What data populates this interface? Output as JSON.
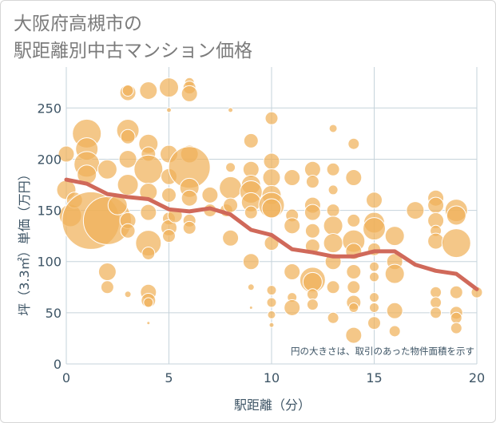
{
  "title": {
    "line1": "大阪府高槻市の",
    "line2": "駅距離別中古マンション価格"
  },
  "annotation": "円の大きさは、取引のあった物件面積を示す",
  "colors": {
    "bubble": "#f0b25a",
    "bubble_stroke": "#ffffff",
    "trend": "#d0695a",
    "grid": "#c6d3db",
    "axis_text": "#3e5566",
    "plot_bg": "#ffffff"
  },
  "chart_data": {
    "type": "scatter",
    "title": "大阪府高槻市の 駅距離別中古マンション価格",
    "xlabel": "駅距離（分）",
    "ylabel": "坪（3.3㎡）単価（万円）",
    "xlim": [
      0,
      20
    ],
    "ylim": [
      0,
      290
    ],
    "xticks": [
      0,
      5,
      10,
      15,
      20
    ],
    "yticks": [
      0,
      50,
      100,
      150,
      200,
      250
    ],
    "grid": true,
    "size_encodes": "物件面積",
    "trend_line": {
      "x": [
        0,
        1,
        2,
        3,
        4,
        5,
        6,
        7,
        8,
        9,
        10,
        11,
        12,
        13,
        14,
        15,
        16,
        17,
        18,
        19,
        20
      ],
      "y": [
        180,
        176,
        166,
        163,
        161,
        151,
        149,
        152,
        146,
        131,
        126,
        112,
        109,
        105,
        105,
        110,
        110,
        97,
        91,
        88,
        73
      ]
    },
    "points": [
      {
        "x": 0,
        "y": 205,
        "s": 10
      },
      {
        "x": 0,
        "y": 170,
        "s": 12
      },
      {
        "x": 0.2,
        "y": 145,
        "s": 14
      },
      {
        "x": 0.4,
        "y": 160,
        "s": 10
      },
      {
        "x": 1,
        "y": 225,
        "s": 18
      },
      {
        "x": 1,
        "y": 210,
        "s": 14
      },
      {
        "x": 1,
        "y": 195,
        "s": 16
      },
      {
        "x": 1,
        "y": 185,
        "s": 12
      },
      {
        "x": 1.2,
        "y": 140,
        "s": 36
      },
      {
        "x": 2,
        "y": 140,
        "s": 30
      },
      {
        "x": 2,
        "y": 190,
        "s": 12
      },
      {
        "x": 2,
        "y": 90,
        "s": 11
      },
      {
        "x": 2,
        "y": 75,
        "s": 8
      },
      {
        "x": 2.5,
        "y": 155,
        "s": 12
      },
      {
        "x": 3,
        "y": 265,
        "s": 10
      },
      {
        "x": 3,
        "y": 267,
        "s": 7
      },
      {
        "x": 3,
        "y": 228,
        "s": 14
      },
      {
        "x": 3,
        "y": 222,
        "s": 9
      },
      {
        "x": 3,
        "y": 200,
        "s": 11
      },
      {
        "x": 3,
        "y": 175,
        "s": 13
      },
      {
        "x": 3,
        "y": 140,
        "s": 10
      },
      {
        "x": 3,
        "y": 130,
        "s": 9
      },
      {
        "x": 3,
        "y": 68,
        "s": 4
      },
      {
        "x": 4,
        "y": 267,
        "s": 11
      },
      {
        "x": 4,
        "y": 215,
        "s": 12
      },
      {
        "x": 4,
        "y": 205,
        "s": 9
      },
      {
        "x": 4,
        "y": 190,
        "s": 18
      },
      {
        "x": 4,
        "y": 168,
        "s": 11
      },
      {
        "x": 4,
        "y": 148,
        "s": 10
      },
      {
        "x": 4,
        "y": 118,
        "s": 16
      },
      {
        "x": 4,
        "y": 108,
        "s": 8
      },
      {
        "x": 4,
        "y": 70,
        "s": 10
      },
      {
        "x": 4,
        "y": 62,
        "s": 9
      },
      {
        "x": 4,
        "y": 60,
        "s": 6
      },
      {
        "x": 4,
        "y": 40,
        "s": 2
      },
      {
        "x": 5,
        "y": 270,
        "s": 12
      },
      {
        "x": 5,
        "y": 248,
        "s": 3
      },
      {
        "x": 5,
        "y": 205,
        "s": 11
      },
      {
        "x": 5,
        "y": 183,
        "s": 10
      },
      {
        "x": 5,
        "y": 165,
        "s": 9
      },
      {
        "x": 5,
        "y": 142,
        "s": 8
      },
      {
        "x": 5,
        "y": 133,
        "s": 10
      },
      {
        "x": 5,
        "y": 125,
        "s": 8
      },
      {
        "x": 5.3,
        "y": 145,
        "s": 9
      },
      {
        "x": 6,
        "y": 275,
        "s": 6
      },
      {
        "x": 6,
        "y": 270,
        "s": 8
      },
      {
        "x": 6,
        "y": 264,
        "s": 10
      },
      {
        "x": 6,
        "y": 205,
        "s": 11
      },
      {
        "x": 6,
        "y": 192,
        "s": 26
      },
      {
        "x": 6,
        "y": 172,
        "s": 12
      },
      {
        "x": 6,
        "y": 162,
        "s": 10
      },
      {
        "x": 6,
        "y": 140,
        "s": 8
      },
      {
        "x": 6,
        "y": 133,
        "s": 8
      },
      {
        "x": 7,
        "y": 165,
        "s": 10
      },
      {
        "x": 7,
        "y": 150,
        "s": 8
      },
      {
        "x": 7.8,
        "y": 150,
        "s": 8
      },
      {
        "x": 8,
        "y": 248,
        "s": 3
      },
      {
        "x": 8,
        "y": 192,
        "s": 6
      },
      {
        "x": 8,
        "y": 172,
        "s": 14
      },
      {
        "x": 8,
        "y": 155,
        "s": 9
      },
      {
        "x": 8,
        "y": 123,
        "s": 10
      },
      {
        "x": 9,
        "y": 218,
        "s": 9
      },
      {
        "x": 9,
        "y": 190,
        "s": 10
      },
      {
        "x": 9,
        "y": 175,
        "s": 12
      },
      {
        "x": 9,
        "y": 168,
        "s": 14
      },
      {
        "x": 9,
        "y": 158,
        "s": 12
      },
      {
        "x": 9,
        "y": 148,
        "s": 8
      },
      {
        "x": 9,
        "y": 100,
        "s": 10
      },
      {
        "x": 9,
        "y": 75,
        "s": 4
      },
      {
        "x": 9,
        "y": 55,
        "s": 2
      },
      {
        "x": 10,
        "y": 240,
        "s": 8
      },
      {
        "x": 10,
        "y": 198,
        "s": 10
      },
      {
        "x": 10,
        "y": 182,
        "s": 11
      },
      {
        "x": 10,
        "y": 165,
        "s": 12
      },
      {
        "x": 10,
        "y": 155,
        "s": 16
      },
      {
        "x": 10,
        "y": 152,
        "s": 12
      },
      {
        "x": 10,
        "y": 118,
        "s": 9
      },
      {
        "x": 10,
        "y": 72,
        "s": 6
      },
      {
        "x": 10,
        "y": 60,
        "s": 6
      },
      {
        "x": 10,
        "y": 48,
        "s": 5
      },
      {
        "x": 10,
        "y": 38,
        "s": 3
      },
      {
        "x": 11,
        "y": 182,
        "s": 10
      },
      {
        "x": 11,
        "y": 145,
        "s": 8
      },
      {
        "x": 11,
        "y": 135,
        "s": 10
      },
      {
        "x": 11,
        "y": 90,
        "s": 10
      },
      {
        "x": 11,
        "y": 65,
        "s": 6
      },
      {
        "x": 11,
        "y": 55,
        "s": 10
      },
      {
        "x": 12,
        "y": 190,
        "s": 10
      },
      {
        "x": 12,
        "y": 178,
        "s": 8
      },
      {
        "x": 12,
        "y": 155,
        "s": 10
      },
      {
        "x": 12,
        "y": 148,
        "s": 10
      },
      {
        "x": 12,
        "y": 130,
        "s": 9
      },
      {
        "x": 12,
        "y": 115,
        "s": 9
      },
      {
        "x": 12,
        "y": 82,
        "s": 16
      },
      {
        "x": 12,
        "y": 80,
        "s": 12
      },
      {
        "x": 12,
        "y": 68,
        "s": 7
      },
      {
        "x": 12,
        "y": 58,
        "s": 7
      },
      {
        "x": 13,
        "y": 230,
        "s": 5
      },
      {
        "x": 13,
        "y": 190,
        "s": 8
      },
      {
        "x": 13,
        "y": 170,
        "s": 6
      },
      {
        "x": 13,
        "y": 150,
        "s": 8
      },
      {
        "x": 13,
        "y": 135,
        "s": 12
      },
      {
        "x": 13,
        "y": 118,
        "s": 12
      },
      {
        "x": 13,
        "y": 100,
        "s": 10
      },
      {
        "x": 13,
        "y": 75,
        "s": 8
      },
      {
        "x": 13,
        "y": 45,
        "s": 7
      },
      {
        "x": 14,
        "y": 215,
        "s": 7
      },
      {
        "x": 14,
        "y": 182,
        "s": 10
      },
      {
        "x": 14,
        "y": 140,
        "s": 8
      },
      {
        "x": 14,
        "y": 120,
        "s": 14
      },
      {
        "x": 14,
        "y": 110,
        "s": 10
      },
      {
        "x": 14,
        "y": 90,
        "s": 9
      },
      {
        "x": 14,
        "y": 75,
        "s": 8
      },
      {
        "x": 14,
        "y": 60,
        "s": 9
      },
      {
        "x": 14,
        "y": 55,
        "s": 6
      },
      {
        "x": 14,
        "y": 28,
        "s": 10
      },
      {
        "x": 15,
        "y": 160,
        "s": 10
      },
      {
        "x": 15,
        "y": 138,
        "s": 13
      },
      {
        "x": 15,
        "y": 132,
        "s": 14
      },
      {
        "x": 15,
        "y": 112,
        "s": 8
      },
      {
        "x": 15,
        "y": 95,
        "s": 6
      },
      {
        "x": 15,
        "y": 85,
        "s": 6
      },
      {
        "x": 15,
        "y": 65,
        "s": 6
      },
      {
        "x": 15,
        "y": 55,
        "s": 6
      },
      {
        "x": 15,
        "y": 40,
        "s": 8
      },
      {
        "x": 16,
        "y": 125,
        "s": 12
      },
      {
        "x": 16,
        "y": 100,
        "s": 10
      },
      {
        "x": 16,
        "y": 88,
        "s": 12
      },
      {
        "x": 16,
        "y": 52,
        "s": 10
      },
      {
        "x": 16,
        "y": 32,
        "s": 7
      },
      {
        "x": 17,
        "y": 150,
        "s": 11
      },
      {
        "x": 18,
        "y": 162,
        "s": 10
      },
      {
        "x": 18,
        "y": 155,
        "s": 10
      },
      {
        "x": 18,
        "y": 140,
        "s": 10
      },
      {
        "x": 18,
        "y": 130,
        "s": 7
      },
      {
        "x": 18,
        "y": 120,
        "s": 10
      },
      {
        "x": 18,
        "y": 70,
        "s": 7
      },
      {
        "x": 18,
        "y": 60,
        "s": 7
      },
      {
        "x": 18,
        "y": 50,
        "s": 7
      },
      {
        "x": 19,
        "y": 150,
        "s": 14
      },
      {
        "x": 19,
        "y": 145,
        "s": 12
      },
      {
        "x": 19,
        "y": 118,
        "s": 18
      },
      {
        "x": 19,
        "y": 70,
        "s": 8
      },
      {
        "x": 19,
        "y": 50,
        "s": 8
      },
      {
        "x": 19,
        "y": 45,
        "s": 7
      },
      {
        "x": 19,
        "y": 35,
        "s": 7
      },
      {
        "x": 20,
        "y": 70,
        "s": 7
      }
    ]
  }
}
